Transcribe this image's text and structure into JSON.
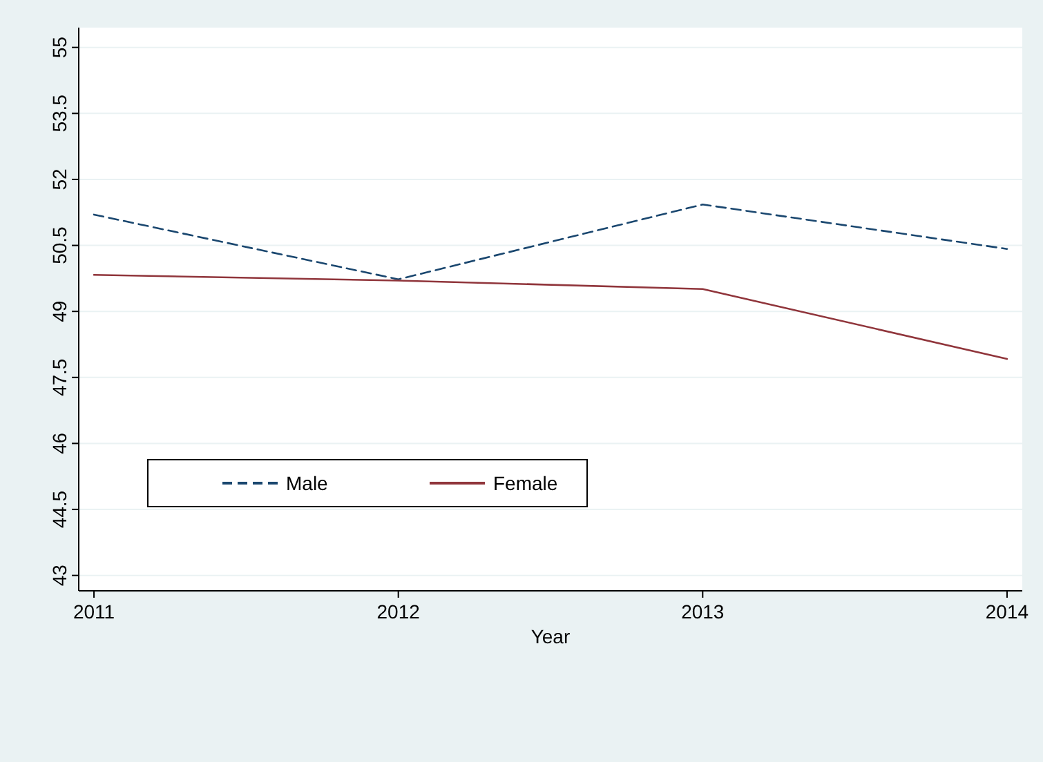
{
  "chart_data": {
    "type": "line",
    "xlabel": "Year",
    "x": [
      2011,
      2012,
      2013,
      2014
    ],
    "xlim": [
      2010.95,
      2014.05
    ],
    "xticks": [
      2011,
      2012,
      2013,
      2014
    ],
    "ylim": [
      42.65,
      55.45
    ],
    "yticks": [
      43,
      44.5,
      46,
      47.5,
      49,
      50.5,
      52,
      53.5,
      55
    ],
    "grid": "y",
    "legend": "bottom left",
    "series": [
      {
        "name": "Male",
        "color": "#1a476f",
        "line_style": "dashed",
        "values": [
          51.2,
          49.73,
          51.43,
          50.42
        ]
      },
      {
        "name": "Female",
        "color": "#90353b",
        "line_style": "solid",
        "values": [
          49.83,
          49.7,
          49.51,
          47.92
        ]
      }
    ]
  }
}
